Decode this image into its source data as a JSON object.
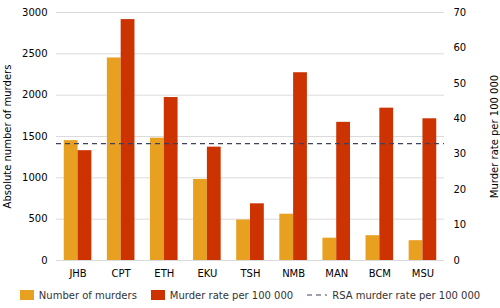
{
  "chart_data": {
    "type": "bar",
    "categories": [
      "JHB",
      "CPT",
      "ETH",
      "EKU",
      "TSH",
      "NMB",
      "MAN",
      "BCM",
      "MSU"
    ],
    "series": [
      {
        "name": "Number of murders",
        "color": "#E8A020",
        "values": [
          1450,
          2450,
          1480,
          980,
          490,
          560,
          270,
          300,
          240
        ]
      },
      {
        "name": "Murder rate per 100 000",
        "color": "#CC3300",
        "values": [
          31,
          68,
          46,
          32,
          16,
          53,
          39,
          43,
          40
        ],
        "axis": "y2"
      }
    ],
    "reference_lines": [
      {
        "name": "RSA murder rate per 100 000",
        "value": 33.0,
        "axis": "y2",
        "color": "#404060",
        "line_style": "dashed"
      }
    ],
    "ylabel": "Absolute number of murders",
    "y2label": "Murder rate per 100 000",
    "ylim": [
      0,
      3000
    ],
    "yticks": [
      0,
      500,
      1000,
      1500,
      2000,
      2500,
      3000
    ],
    "y2lim": [
      0,
      70
    ],
    "y2ticks": [
      0,
      10,
      20,
      30,
      40,
      50,
      60,
      70
    ],
    "grid": true,
    "legend": "bottom"
  }
}
